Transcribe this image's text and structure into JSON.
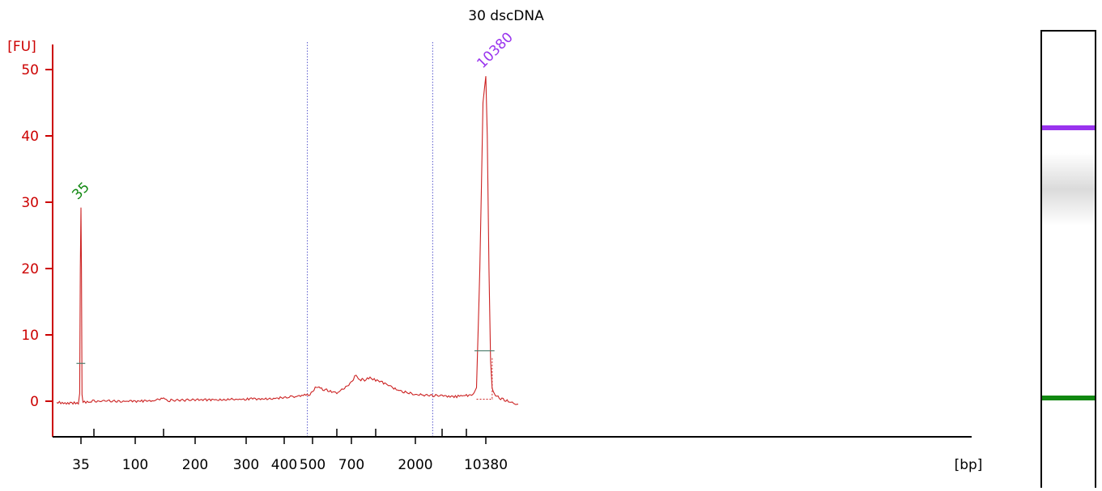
{
  "colors": {
    "axis": "#cc0000",
    "trace": "#cc2222",
    "text": "#000000",
    "marker_lower": "#118811",
    "marker_upper": "#9933ee",
    "region_line": "#5555cc"
  },
  "chart_data": {
    "type": "line",
    "title": "30 dscDNA",
    "ylabel": "[FU]",
    "xlabel": "[bp]",
    "ylim": [
      -5.5,
      54
    ],
    "y_ticks": [
      0,
      10,
      20,
      30,
      40,
      50
    ],
    "x_tick_labels": [
      "35",
      "100",
      "200",
      "300",
      "400",
      "500",
      "700",
      "2000",
      "10380"
    ],
    "x_tick_label_values": [
      35,
      100,
      200,
      300,
      400,
      500,
      700,
      2000,
      10380
    ],
    "x_minor_ticks": [
      50,
      150,
      600,
      1000,
      3000,
      7000
    ],
    "x_scale": "sizing-ladder",
    "ladder": [
      [
        20,
        5
      ],
      [
        35,
        35
      ],
      [
        50,
        51
      ],
      [
        100,
        102
      ],
      [
        150,
        137
      ],
      [
        200,
        176
      ],
      [
        300,
        239
      ],
      [
        400,
        286
      ],
      [
        500,
        321
      ],
      [
        600,
        351
      ],
      [
        700,
        369
      ],
      [
        1000,
        399
      ],
      [
        2000,
        448
      ],
      [
        3000,
        481
      ],
      [
        7000,
        511
      ],
      [
        10380,
        535
      ],
      [
        15000,
        552
      ],
      [
        25000,
        575
      ]
    ],
    "series": [
      {
        "points": [
          [
            20,
            -0.2
          ],
          [
            25,
            -0.25
          ],
          [
            30,
            -0.3
          ],
          [
            33,
            -0.3
          ],
          [
            34,
            1.0
          ],
          [
            34.5,
            20.0
          ],
          [
            35,
            29.2
          ],
          [
            35.5,
            20.0
          ],
          [
            36,
            1.0
          ],
          [
            37,
            -0.2
          ],
          [
            45,
            0.0
          ],
          [
            80,
            0.0
          ],
          [
            130,
            0.05
          ],
          [
            145,
            0.45
          ],
          [
            155,
            0.1
          ],
          [
            200,
            0.2
          ],
          [
            300,
            0.3
          ],
          [
            400,
            0.5
          ],
          [
            450,
            0.8
          ],
          [
            490,
            1.0
          ],
          [
            515,
            2.2
          ],
          [
            540,
            1.8
          ],
          [
            600,
            1.3
          ],
          [
            650,
            1.9
          ],
          [
            690,
            2.6
          ],
          [
            720,
            3.3
          ],
          [
            750,
            4.0
          ],
          [
            790,
            3.3
          ],
          [
            850,
            3.2
          ],
          [
            920,
            3.5
          ],
          [
            1000,
            3.2
          ],
          [
            1200,
            2.6
          ],
          [
            1500,
            1.6
          ],
          [
            2000,
            1.0
          ],
          [
            3000,
            0.8
          ],
          [
            5000,
            0.7
          ],
          [
            7000,
            0.9
          ],
          [
            8000,
            0.9
          ],
          [
            8600,
            2.0
          ],
          [
            9200,
            20.0
          ],
          [
            9800,
            45.0
          ],
          [
            10380,
            49.0
          ],
          [
            10800,
            40.0
          ],
          [
            11300,
            20.0
          ],
          [
            11800,
            6.0
          ],
          [
            12300,
            2.0
          ],
          [
            13000,
            1.0
          ],
          [
            16000,
            0.3
          ],
          [
            22000,
            -0.3
          ],
          [
            25000,
            -0.4
          ]
        ]
      }
    ],
    "peak_labels": [
      {
        "x": 35,
        "y": 29.2,
        "label": "35"
      },
      {
        "x": 10380,
        "y": 49.0,
        "label": "10380"
      }
    ],
    "region_lines": [
      480,
      2600
    ],
    "peak_baselines": [
      {
        "x_from": 34,
        "x_to": 36,
        "y": 5.7
      },
      {
        "x_from": 8800,
        "x_to": 12000,
        "y": 7.6
      }
    ],
    "grid": false,
    "legend": "none"
  },
  "gel": {
    "bands": [
      {
        "position": 0.21,
        "color": "#9933ee",
        "kind": "marker"
      },
      {
        "position": 0.8,
        "color": "#118811",
        "kind": "marker"
      },
      {
        "position": 0.345,
        "color": "#bdbdbd",
        "kind": "smear"
      }
    ]
  }
}
